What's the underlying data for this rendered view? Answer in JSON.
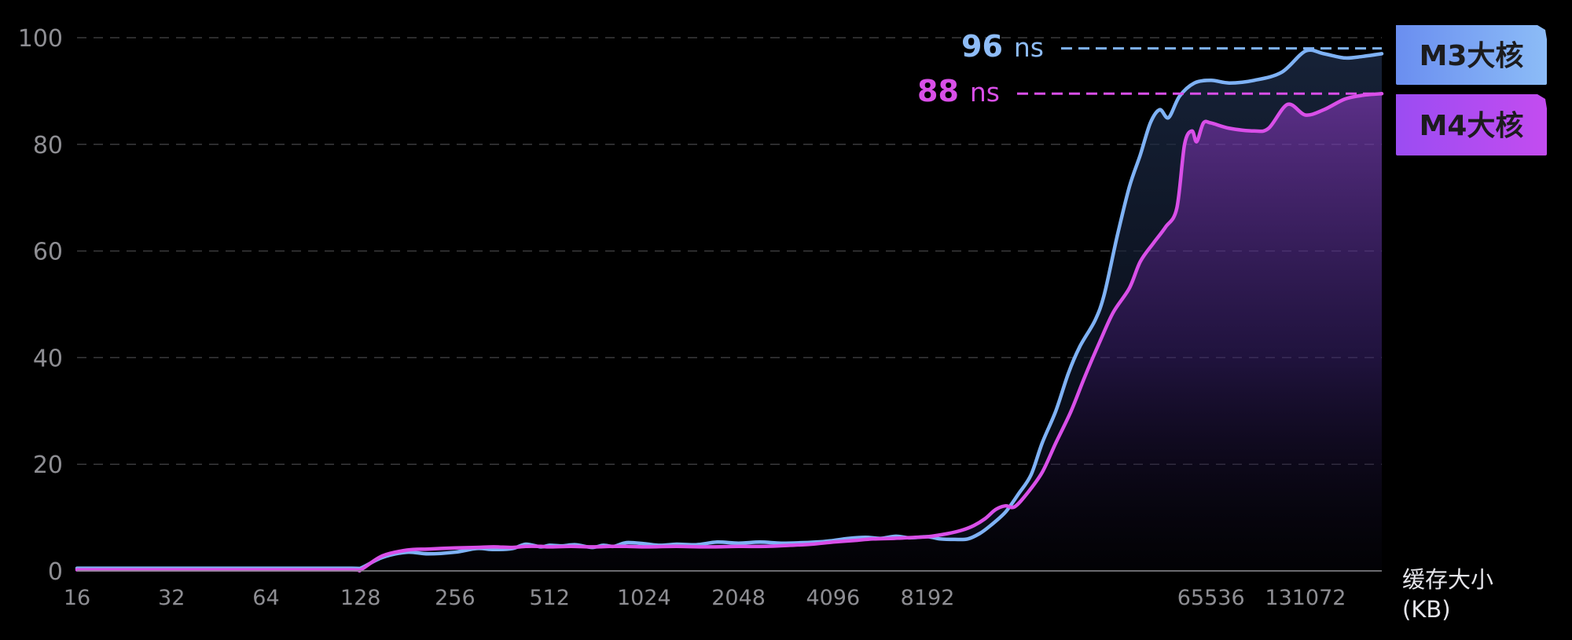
{
  "chart_data": {
    "type": "line",
    "x_scale": "log2",
    "x_ticks": [
      16,
      32,
      64,
      128,
      256,
      512,
      1024,
      2048,
      4096,
      8192,
      65536,
      131072
    ],
    "x_tick_labels": [
      "16",
      "32",
      "64",
      "128",
      "256",
      "512",
      "1024",
      "2048",
      "4096",
      "8192",
      "65536",
      "131072"
    ],
    "y_ticks": [
      0,
      20,
      40,
      60,
      80,
      100
    ],
    "y_tick_labels": [
      "0",
      "20",
      "40",
      "60",
      "80",
      "100"
    ],
    "ylim": [
      0,
      100
    ],
    "xlim": [
      16,
      229376
    ],
    "xlabel_line1": "缓存大小",
    "xlabel_line2": "(KB)",
    "grid": "horizontal-dashed",
    "legend_position": "right",
    "series": [
      {
        "name": "M3大核",
        "color": "#7fb2f5",
        "legend_gradient": [
          "#6a8ef0",
          "#8cbcf7"
        ],
        "final_label": {
          "value": "96",
          "unit": "ns",
          "y": 98
        },
        "points": [
          [
            16,
            0.5
          ],
          [
            64,
            0.5
          ],
          [
            120,
            0.5
          ],
          [
            128,
            0.5
          ],
          [
            150,
            2.5
          ],
          [
            180,
            3.5
          ],
          [
            210,
            3.2
          ],
          [
            256,
            3.5
          ],
          [
            300,
            4.2
          ],
          [
            340,
            4.0
          ],
          [
            390,
            4.2
          ],
          [
            430,
            5.0
          ],
          [
            480,
            4.5
          ],
          [
            512,
            4.8
          ],
          [
            560,
            4.7
          ],
          [
            620,
            4.9
          ],
          [
            700,
            4.4
          ],
          [
            760,
            4.8
          ],
          [
            820,
            4.6
          ],
          [
            900,
            5.3
          ],
          [
            1024,
            5.1
          ],
          [
            1150,
            4.8
          ],
          [
            1300,
            5.0
          ],
          [
            1500,
            4.9
          ],
          [
            1750,
            5.4
          ],
          [
            2048,
            5.2
          ],
          [
            2400,
            5.4
          ],
          [
            2800,
            5.2
          ],
          [
            3300,
            5.3
          ],
          [
            3800,
            5.5
          ],
          [
            4096,
            5.7
          ],
          [
            4600,
            6.1
          ],
          [
            5200,
            6.3
          ],
          [
            5800,
            6.1
          ],
          [
            6500,
            6.5
          ],
          [
            7200,
            6.2
          ],
          [
            8192,
            6.4
          ],
          [
            9000,
            6.0
          ],
          [
            10000,
            5.9
          ],
          [
            11000,
            6.0
          ],
          [
            12000,
            7.0
          ],
          [
            13000,
            8.5
          ],
          [
            14500,
            11.0
          ],
          [
            16000,
            14.5
          ],
          [
            17500,
            18.0
          ],
          [
            19000,
            24.0
          ],
          [
            21000,
            30.0
          ],
          [
            23000,
            37.0
          ],
          [
            25000,
            42.0
          ],
          [
            28000,
            47.0
          ],
          [
            30000,
            52.0
          ],
          [
            33000,
            63.0
          ],
          [
            36000,
            72.0
          ],
          [
            39000,
            78.0
          ],
          [
            42000,
            84.0
          ],
          [
            45000,
            86.5
          ],
          [
            48000,
            85.0
          ],
          [
            52000,
            89.0
          ],
          [
            58000,
            91.5
          ],
          [
            65536,
            92.0
          ],
          [
            75000,
            91.5
          ],
          [
            90000,
            92.0
          ],
          [
            110000,
            93.5
          ],
          [
            131072,
            97.5
          ],
          [
            150000,
            97.0
          ],
          [
            175000,
            96.2
          ],
          [
            200000,
            96.5
          ],
          [
            229376,
            97.0
          ]
        ]
      },
      {
        "name": "M4大核",
        "color": "#d94fe8",
        "legend_gradient": [
          "#9b4cf2",
          "#c34cf0"
        ],
        "final_label": {
          "value": "88",
          "unit": "ns",
          "y": 89.5
        },
        "points": [
          [
            16,
            0.2
          ],
          [
            64,
            0.2
          ],
          [
            120,
            0.2
          ],
          [
            128,
            0.2
          ],
          [
            150,
            2.8
          ],
          [
            180,
            3.9
          ],
          [
            210,
            4.1
          ],
          [
            256,
            4.3
          ],
          [
            300,
            4.4
          ],
          [
            340,
            4.5
          ],
          [
            390,
            4.4
          ],
          [
            430,
            4.6
          ],
          [
            480,
            4.6
          ],
          [
            512,
            4.5
          ],
          [
            600,
            4.6
          ],
          [
            700,
            4.5
          ],
          [
            800,
            4.6
          ],
          [
            900,
            4.6
          ],
          [
            1024,
            4.5
          ],
          [
            1300,
            4.6
          ],
          [
            1600,
            4.5
          ],
          [
            2048,
            4.6
          ],
          [
            2500,
            4.6
          ],
          [
            3000,
            4.8
          ],
          [
            3500,
            5.0
          ],
          [
            4096,
            5.4
          ],
          [
            4800,
            5.7
          ],
          [
            5500,
            6.0
          ],
          [
            6400,
            6.1
          ],
          [
            7500,
            6.3
          ],
          [
            8192,
            6.4
          ],
          [
            9500,
            7.0
          ],
          [
            10500,
            7.6
          ],
          [
            11500,
            8.5
          ],
          [
            12500,
            9.8
          ],
          [
            13500,
            11.5
          ],
          [
            14500,
            12.2
          ],
          [
            15500,
            12.0
          ],
          [
            17000,
            14.5
          ],
          [
            19000,
            18.5
          ],
          [
            21000,
            24.0
          ],
          [
            23500,
            30.0
          ],
          [
            26000,
            36.5
          ],
          [
            29000,
            43.0
          ],
          [
            32000,
            48.5
          ],
          [
            36000,
            53.0
          ],
          [
            39000,
            58.0
          ],
          [
            43000,
            61.5
          ],
          [
            47000,
            64.5
          ],
          [
            51000,
            68.0
          ],
          [
            54000,
            80.0
          ],
          [
            57000,
            82.5
          ],
          [
            59000,
            80.5
          ],
          [
            62000,
            84.0
          ],
          [
            65536,
            84.0
          ],
          [
            75000,
            83.0
          ],
          [
            90000,
            82.5
          ],
          [
            100000,
            83.0
          ],
          [
            115000,
            87.5
          ],
          [
            131072,
            85.5
          ],
          [
            150000,
            86.5
          ],
          [
            175000,
            88.5
          ],
          [
            200000,
            89.2
          ],
          [
            229376,
            89.5
          ]
        ]
      }
    ]
  }
}
